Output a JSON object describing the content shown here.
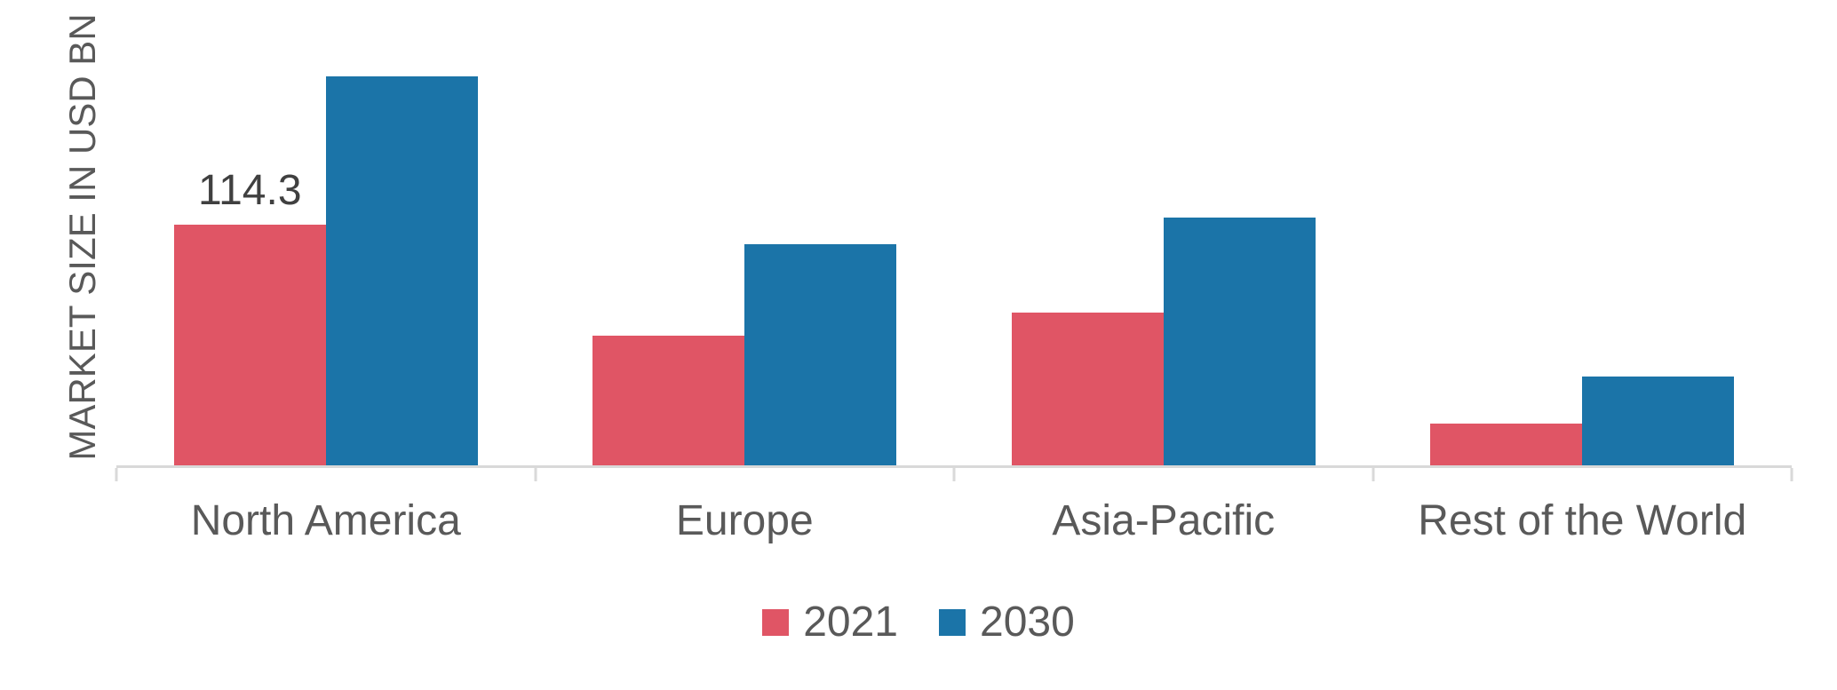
{
  "chart_data": {
    "type": "bar",
    "title": "",
    "xlabel": "",
    "ylabel": "MARKET SIZE IN USD BN",
    "categories": [
      "North America",
      "Europe",
      "Asia-Pacific",
      "Rest of the World"
    ],
    "series": [
      {
        "name": "2021",
        "color": "#e05565",
        "values": [
          114.3,
          61.6,
          72.5,
          19.8
        ]
      },
      {
        "name": "2030",
        "color": "#1b74a8",
        "values": [
          184.8,
          105.0,
          117.7,
          42.2
        ]
      }
    ],
    "data_labels": [
      {
        "series": "2021",
        "category": "North America",
        "text": "114.3"
      }
    ],
    "ylim": [
      0,
      200
    ],
    "grid": false,
    "y_axis_tick_labels_visible": false,
    "legend_position": "bottom"
  },
  "colors": {
    "background": "#ffffff",
    "axis_line": "#d9d9d9",
    "tick": "#d9d9d9",
    "axis_label_text": "#595959",
    "legend_text": "#595959",
    "data_label_text": "#404040"
  }
}
